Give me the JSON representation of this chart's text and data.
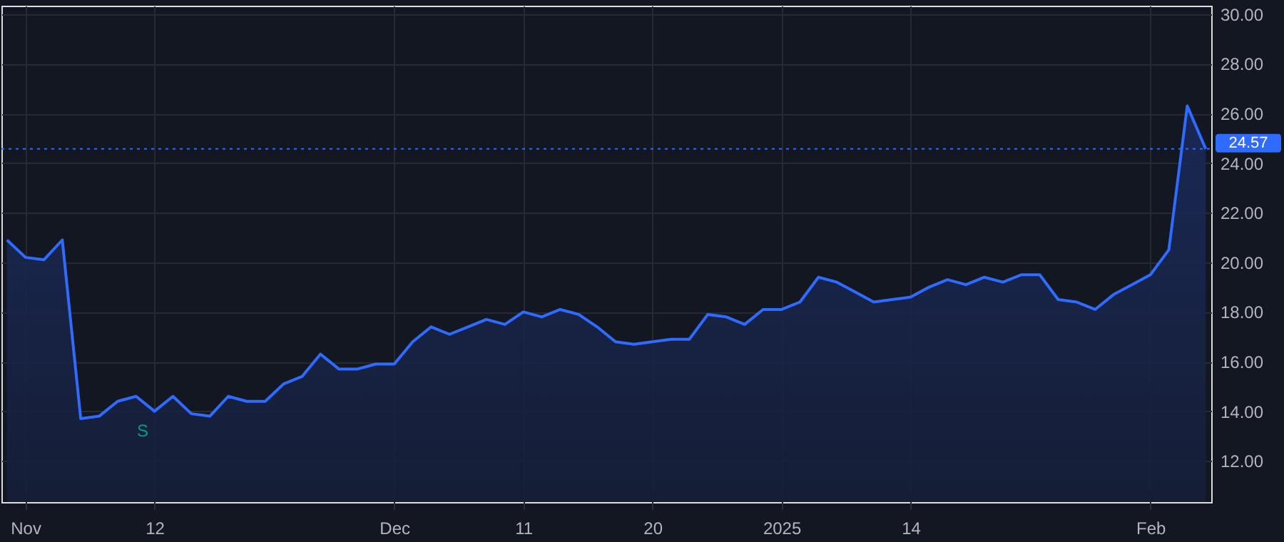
{
  "chart_data": {
    "type": "area",
    "categories": [
      null,
      "Nov",
      null,
      null,
      null,
      null,
      null,
      null,
      "12",
      null,
      null,
      null,
      null,
      null,
      null,
      null,
      null,
      null,
      null,
      null,
      null,
      "Dec",
      null,
      null,
      null,
      null,
      null,
      null,
      "11",
      null,
      null,
      null,
      null,
      null,
      null,
      "20",
      null,
      null,
      null,
      null,
      null,
      null,
      "2025",
      null,
      null,
      null,
      null,
      null,
      null,
      "14",
      null,
      null,
      null,
      null,
      null,
      null,
      null,
      null,
      null,
      null,
      null,
      null,
      "Feb",
      null,
      null,
      null
    ],
    "series": [
      {
        "color": "#2f6bff",
        "values": [
          20.9,
          20.2,
          20.1,
          20.9,
          13.7,
          13.8,
          14.4,
          14.6,
          14.0,
          14.6,
          13.9,
          13.8,
          14.6,
          14.4,
          14.4,
          15.1,
          15.4,
          16.3,
          15.7,
          15.7,
          15.9,
          15.9,
          16.8,
          17.4,
          17.1,
          17.4,
          17.7,
          17.5,
          18.0,
          17.8,
          18.1,
          17.9,
          17.4,
          16.8,
          16.7,
          16.8,
          16.9,
          16.9,
          17.9,
          17.8,
          17.5,
          18.1,
          18.1,
          18.4,
          19.4,
          19.2,
          18.8,
          18.4,
          18.5,
          18.6,
          19.0,
          19.3,
          19.1,
          19.4,
          19.2,
          19.5,
          19.5,
          18.5,
          18.4,
          18.1,
          18.7,
          19.1,
          19.5,
          20.5,
          26.3,
          24.57
        ]
      }
    ],
    "ylim": [
      10.34,
      30.34
    ],
    "yticks": [
      {
        "value": 12,
        "label": "12.00"
      },
      {
        "value": 14,
        "label": "14.00"
      },
      {
        "value": 16,
        "label": "16.00"
      },
      {
        "value": 18,
        "label": "18.00"
      },
      {
        "value": 20,
        "label": "20.00"
      },
      {
        "value": 22,
        "label": "22.00"
      },
      {
        "value": 24,
        "label": "24.00"
      },
      {
        "value": 26,
        "label": "26.00"
      },
      {
        "value": 28,
        "label": "28.00"
      },
      {
        "value": 30,
        "label": "30.00"
      }
    ],
    "ref_lines": [
      {
        "axis": "y",
        "value": 24.57,
        "label": "24.57",
        "color": "#2f6bff",
        "line_style": "dotted"
      }
    ],
    "annotations": [
      "S"
    ],
    "grid": true,
    "marker": "none",
    "line_style": "solid"
  }
}
